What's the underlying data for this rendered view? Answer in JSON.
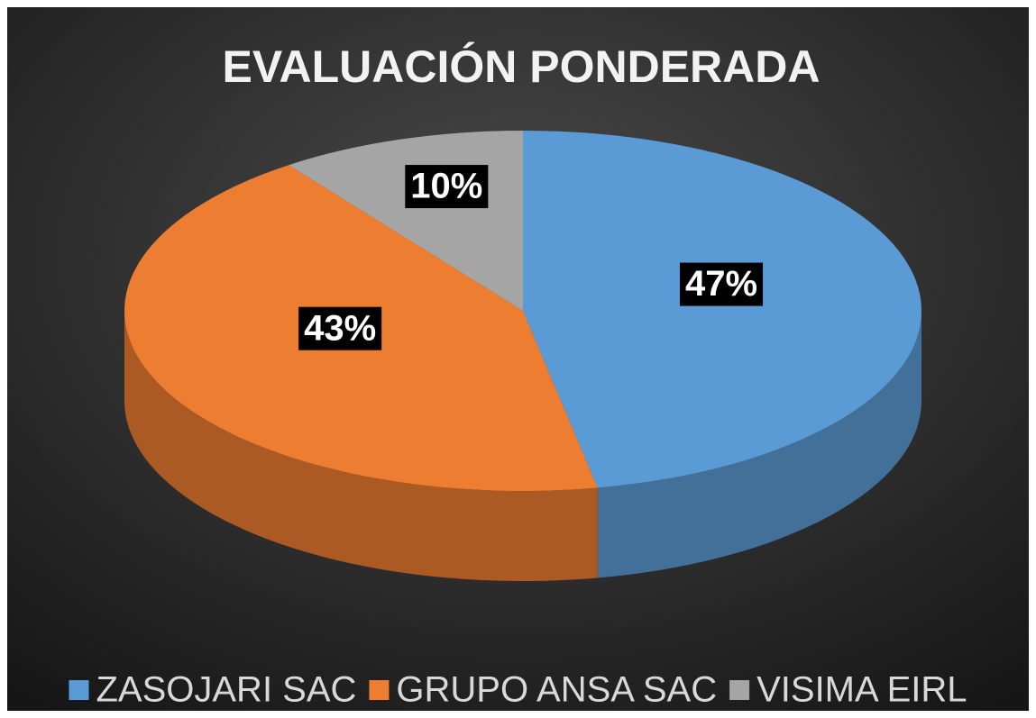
{
  "chart_data": {
    "type": "pie3d",
    "title": "EVALUACIÓN  PONDERADA",
    "categories": [
      "ZASOJARI SAC",
      "GRUPO ANSA SAC",
      "VISIMA EIRL"
    ],
    "values": [
      47,
      43,
      10
    ],
    "value_labels": [
      "47%",
      "43%",
      "10%"
    ],
    "colors": [
      "#5b9bd5",
      "#ed7d31",
      "#a5a5a5"
    ],
    "legend": "bottom"
  }
}
